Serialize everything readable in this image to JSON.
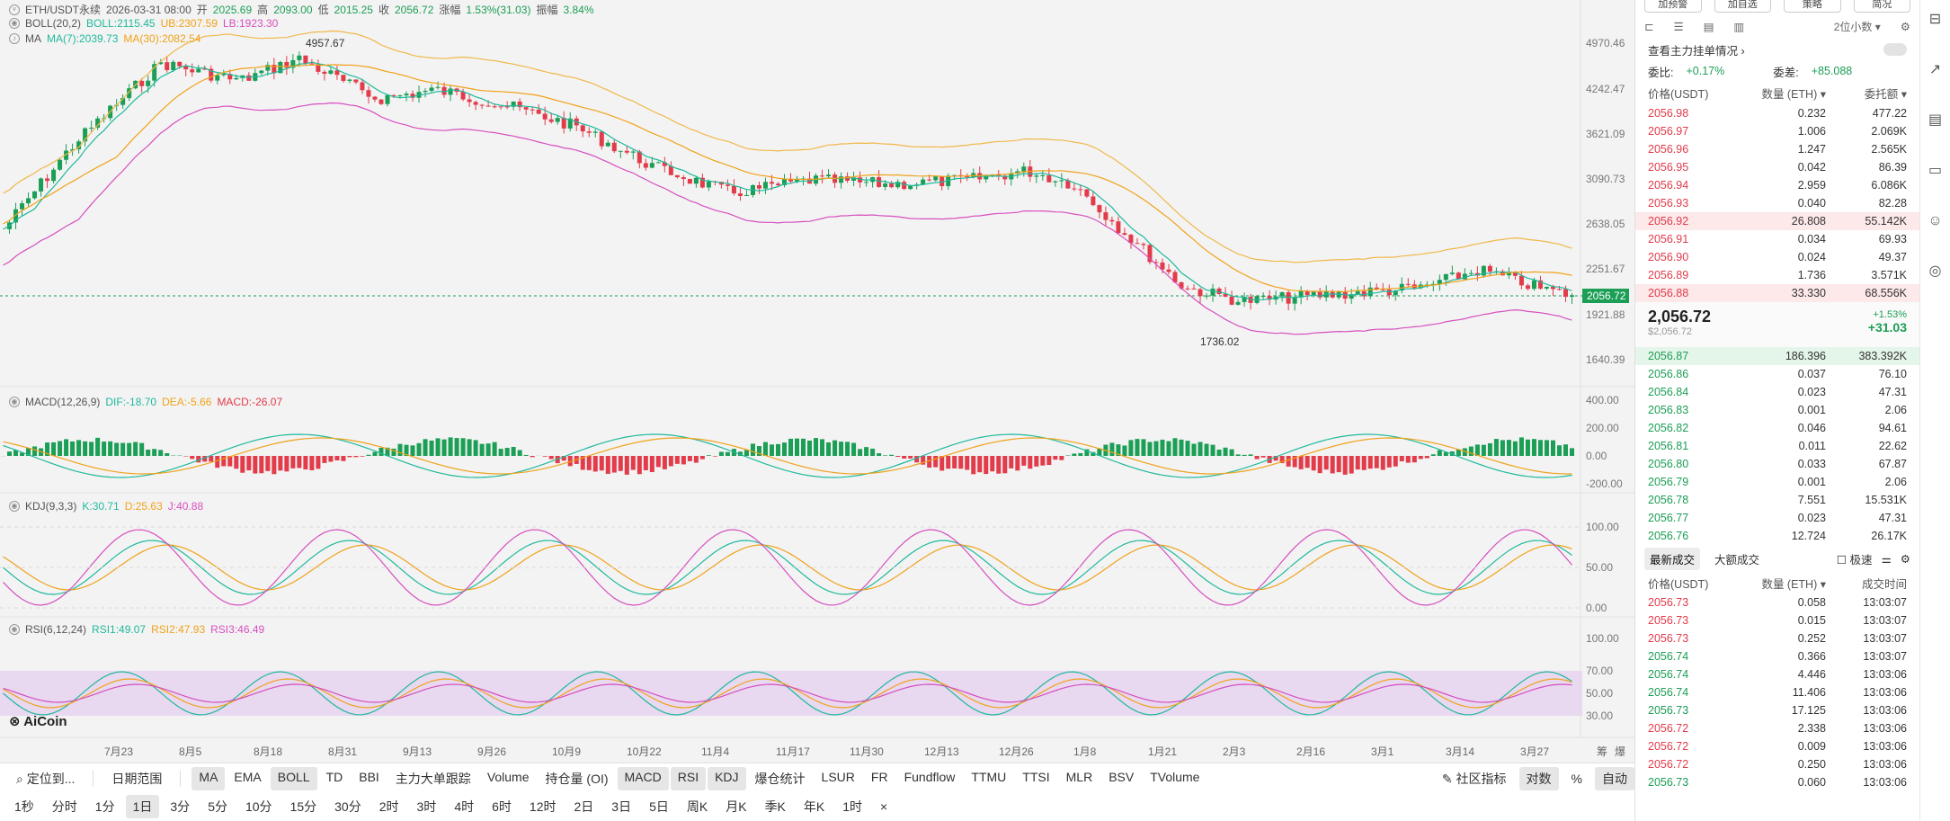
{
  "header": {
    "symbol": "ETH/USDT永续",
    "date": "2026-03-31 08:00",
    "open_l": "开",
    "open": "2025.69",
    "high_l": "高",
    "high": "2093.00",
    "low_l": "低",
    "low": "2015.25",
    "close_l": "收",
    "close": "2056.72",
    "chg_l": "涨幅",
    "chg": "1.53%(31.03)",
    "amp_l": "振幅",
    "amp": "3.84%"
  },
  "legends": {
    "boll": {
      "name": "BOLL(20,2)",
      "v1": "BOLL:2115.45",
      "v2": "UB:2307.59",
      "v3": "LB:1923.30"
    },
    "ma": {
      "name": "MA",
      "v1": "MA(7):2039.73",
      "v2": "MA(30):2082.54"
    },
    "macd": {
      "name": "MACD(12,26,9)",
      "v1": "DIF:-18.70",
      "v2": "DEA:-5.66",
      "v3": "MACD:-26.07"
    },
    "kdj": {
      "name": "KDJ(9,3,3)",
      "v1": "K:30.71",
      "v2": "D:25.63",
      "v3": "J:40.88"
    },
    "rsi": {
      "name": "RSI(6,12,24)",
      "v1": "RSI1:49.07",
      "v2": "RSI2:47.93",
      "v3": "RSI3:46.49"
    }
  },
  "price_axis": [
    "4970.46",
    "4242.47",
    "3621.09",
    "3090.73",
    "2638.05",
    "2251.67",
    "1921.88",
    "1640.39"
  ],
  "current_price_tag": "2056.72",
  "annotations": {
    "high": "4957.67",
    "low": "1736.02"
  },
  "macd_axis": [
    "400.00",
    "200.00",
    "0.00",
    "-200.00"
  ],
  "kdj_axis": [
    "100.00",
    "50.00",
    "0.00"
  ],
  "rsi_axis": [
    "100.00",
    "70.00",
    "50.00",
    "30.00"
  ],
  "x_dates": [
    "7月23",
    "8月5",
    "8月18",
    "8月31",
    "9月13",
    "9月26",
    "10月9",
    "10月22",
    "11月4",
    "11月17",
    "11月30",
    "12月13",
    "12月26",
    "1月8",
    "1月21",
    "2月3",
    "2月16",
    "3月1",
    "3月14",
    "3月27"
  ],
  "x_right_btns": [
    "筹",
    "爆"
  ],
  "logo": "AiCoin",
  "bar1": {
    "locate": "定位到...",
    "range": "日期范围",
    "indicators": [
      "MA",
      "EMA",
      "BOLL",
      "TD",
      "BBI",
      "主力大单跟踪",
      "Volume",
      "持仓量 (OI)",
      "MACD",
      "RSI",
      "KDJ",
      "爆仓统计",
      "LSUR",
      "FR",
      "Fundflow",
      "TTMU",
      "TTSI",
      "MLR",
      "BSV",
      "TVolume"
    ],
    "community": "社区指标",
    "log": "对数",
    "pct": "%",
    "auto": "自动"
  },
  "bar2": {
    "intervals": [
      "1秒",
      "分时",
      "1分",
      "1日",
      "3分",
      "5分",
      "10分",
      "15分",
      "30分",
      "2时",
      "3时",
      "4时",
      "6时",
      "12时",
      "2日",
      "3日",
      "5日",
      "周K",
      "月K",
      "季K",
      "年K",
      "1时"
    ],
    "close": "×"
  },
  "right": {
    "top_buttons": [
      "加预警",
      "加自选",
      "策略",
      "简况"
    ],
    "decimals": "2位小数",
    "main_order_link": "查看主力挂单情况",
    "ratio_label": "委比:",
    "ratio_value": "+0.17%",
    "diff_label": "委差:",
    "diff_value": "+85.088",
    "columns": {
      "price": "价格(USDT)",
      "qty": "数量 (ETH)",
      "amount": "委托额"
    },
    "asks": [
      [
        "2056.98",
        "0.232",
        "477.22"
      ],
      [
        "2056.97",
        "1.006",
        "2.069K"
      ],
      [
        "2056.96",
        "1.247",
        "2.565K"
      ],
      [
        "2056.95",
        "0.042",
        "86.39"
      ],
      [
        "2056.94",
        "2.959",
        "6.086K"
      ],
      [
        "2056.93",
        "0.040",
        "82.28"
      ],
      [
        "2056.92",
        "26.808",
        "55.142K"
      ],
      [
        "2056.91",
        "0.034",
        "69.93"
      ],
      [
        "2056.90",
        "0.024",
        "49.37"
      ],
      [
        "2056.89",
        "1.736",
        "3.571K"
      ],
      [
        "2056.88",
        "33.330",
        "68.556K"
      ]
    ],
    "mid_price": "2,056.72",
    "mid_usd": "$2,056.72",
    "mid_pct": "+1.53%",
    "mid_chg": "+31.03",
    "bids": [
      [
        "2056.87",
        "186.396",
        "383.392K"
      ],
      [
        "2056.86",
        "0.037",
        "76.10"
      ],
      [
        "2056.84",
        "0.023",
        "47.31"
      ],
      [
        "2056.83",
        "0.001",
        "2.06"
      ],
      [
        "2056.82",
        "0.046",
        "94.61"
      ],
      [
        "2056.81",
        "0.011",
        "22.62"
      ],
      [
        "2056.80",
        "0.033",
        "67.87"
      ],
      [
        "2056.79",
        "0.001",
        "2.06"
      ],
      [
        "2056.78",
        "7.551",
        "15.531K"
      ],
      [
        "2056.77",
        "0.023",
        "47.31"
      ],
      [
        "2056.76",
        "12.724",
        "26.17K"
      ]
    ],
    "trade_tabs": [
      "最新成交",
      "大额成交"
    ],
    "fast_label": "极速",
    "trade_columns": {
      "price": "价格(USDT)",
      "qty": "数量 (ETH)",
      "time": "成交时间"
    },
    "trades": [
      [
        "2056.73",
        "0.058",
        "13:03:07",
        "r"
      ],
      [
        "2056.73",
        "0.015",
        "13:03:07",
        "r"
      ],
      [
        "2056.73",
        "0.252",
        "13:03:07",
        "r"
      ],
      [
        "2056.74",
        "0.366",
        "13:03:07",
        "g"
      ],
      [
        "2056.74",
        "4.446",
        "13:03:06",
        "g"
      ],
      [
        "2056.74",
        "11.406",
        "13:03:06",
        "g"
      ],
      [
        "2056.73",
        "17.125",
        "13:03:06",
        "g"
      ],
      [
        "2056.72",
        "2.338",
        "13:03:06",
        "r"
      ],
      [
        "2056.72",
        "0.009",
        "13:03:06",
        "r"
      ],
      [
        "2056.72",
        "0.250",
        "13:03:06",
        "r"
      ],
      [
        "2056.73",
        "0.060",
        "13:03:06",
        "g"
      ]
    ]
  }
}
